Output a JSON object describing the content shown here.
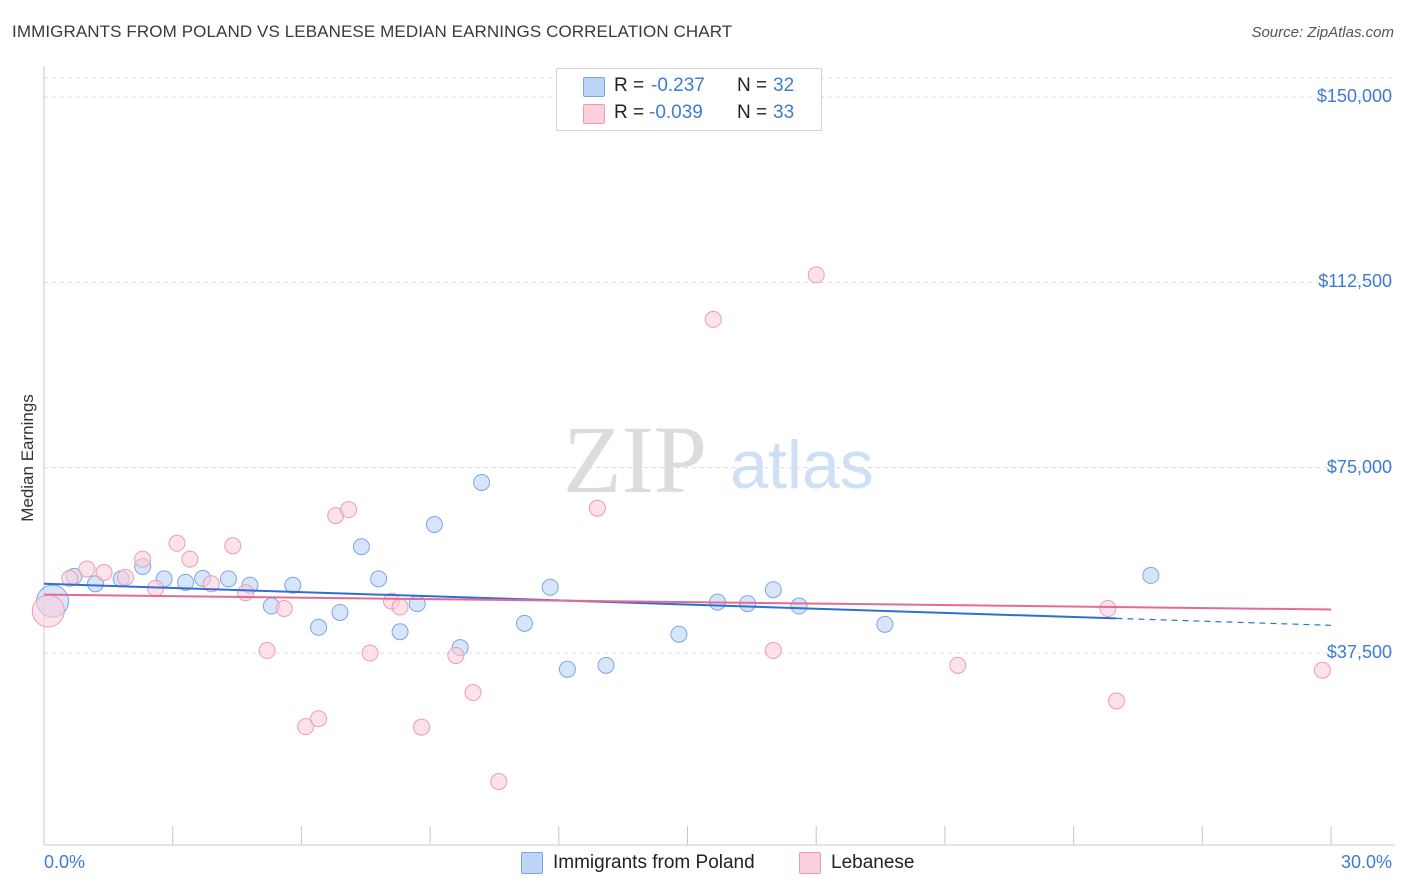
{
  "header": {
    "title": "IMMIGRANTS FROM POLAND VS LEBANESE MEDIAN EARNINGS CORRELATION CHART",
    "source": "Source: ZipAtlas.com"
  },
  "watermark": {
    "zip": "ZIP",
    "atlas": "atlas"
  },
  "stats": {
    "poland": {
      "r_label": "R =",
      "r_value": "-0.237",
      "n_label": "N =",
      "n_value": "32"
    },
    "lebanese": {
      "r_label": "R =",
      "r_value": "-0.039",
      "n_label": "N =",
      "n_value": "33"
    }
  },
  "legend": {
    "poland": "Immigrants from Poland",
    "lebanese": "Lebanese"
  },
  "colors": {
    "poland_fill": "#bcd4f5",
    "poland_stroke": "#7aa6e6",
    "poland_line": "#2f6fd4",
    "lebanese_fill": "#fbcfdc",
    "lebanese_stroke": "#ef9ab5",
    "lebanese_line": "#e46b95",
    "tick_text": "#3d7bd4"
  },
  "chart_data": {
    "type": "scatter",
    "title": "IMMIGRANTS FROM POLAND VS LEBANESE MEDIAN EARNINGS CORRELATION CHART",
    "xlabel": "",
    "ylabel": "Median Earnings",
    "xlim": [
      0,
      30
    ],
    "ylim": [
      0,
      155000
    ],
    "y_ticks": [
      {
        "value": 150000,
        "label": "$150,000"
      },
      {
        "value": 112500,
        "label": "$112,500"
      },
      {
        "value": 75000,
        "label": "$75,000"
      },
      {
        "value": 37500,
        "label": "$37,500"
      }
    ],
    "x_tick_labels": [
      {
        "value": 0,
        "label": "0.0%"
      },
      {
        "value": 30,
        "label": "30.0%"
      }
    ],
    "series": [
      {
        "name": "Immigrants from Poland",
        "r": -0.237,
        "n": 32,
        "trend": {
          "x0": 0,
          "y0": 51500,
          "x1": 25,
          "y1": 44500,
          "dash_to_x": 30,
          "dash_to_y": 43100
        },
        "points": [
          [
            0.2,
            48000,
            16
          ],
          [
            0.7,
            53000,
            8
          ],
          [
            1.2,
            51500,
            8
          ],
          [
            1.8,
            52500,
            8
          ],
          [
            2.3,
            55000,
            8
          ],
          [
            2.8,
            52500,
            8
          ],
          [
            3.3,
            51800,
            8
          ],
          [
            3.7,
            52600,
            8
          ],
          [
            4.3,
            52500,
            8
          ],
          [
            4.8,
            51200,
            8
          ],
          [
            5.3,
            47000,
            8
          ],
          [
            5.8,
            51200,
            8
          ],
          [
            6.4,
            42700,
            8
          ],
          [
            6.9,
            45700,
            8
          ],
          [
            7.4,
            59000,
            8
          ],
          [
            7.8,
            52500,
            8
          ],
          [
            8.3,
            41800,
            8
          ],
          [
            8.7,
            47500,
            8
          ],
          [
            9.1,
            63500,
            8
          ],
          [
            9.7,
            38600,
            8
          ],
          [
            10.2,
            72000,
            8
          ],
          [
            11.2,
            43500,
            8
          ],
          [
            11.8,
            50800,
            8
          ],
          [
            12.2,
            34200,
            8
          ],
          [
            13.1,
            35000,
            8
          ],
          [
            14.8,
            41300,
            8
          ],
          [
            15.7,
            47800,
            8
          ],
          [
            16.4,
            47500,
            8
          ],
          [
            17.0,
            50300,
            8
          ],
          [
            17.6,
            47000,
            8
          ],
          [
            19.6,
            43300,
            8
          ],
          [
            25.8,
            53200,
            8
          ]
        ]
      },
      {
        "name": "Lebanese",
        "r": -0.039,
        "n": 33,
        "trend": {
          "x0": 0,
          "y0": 49300,
          "x1": 30,
          "y1": 46300
        },
        "points": [
          [
            0.1,
            46000,
            16
          ],
          [
            0.6,
            52600,
            8
          ],
          [
            1.0,
            54500,
            8
          ],
          [
            1.4,
            53800,
            8
          ],
          [
            1.9,
            52800,
            8
          ],
          [
            2.3,
            56500,
            8
          ],
          [
            2.6,
            50600,
            8
          ],
          [
            3.1,
            59700,
            8
          ],
          [
            3.4,
            56500,
            8
          ],
          [
            3.9,
            51500,
            8
          ],
          [
            4.4,
            59200,
            8
          ],
          [
            4.7,
            49700,
            8
          ],
          [
            5.2,
            38000,
            8
          ],
          [
            5.6,
            46500,
            8
          ],
          [
            6.1,
            22600,
            8
          ],
          [
            6.4,
            24200,
            8
          ],
          [
            6.8,
            65300,
            8
          ],
          [
            7.1,
            66500,
            8
          ],
          [
            7.6,
            37500,
            8
          ],
          [
            8.1,
            48000,
            8
          ],
          [
            8.3,
            46800,
            8
          ],
          [
            8.8,
            22500,
            8
          ],
          [
            9.6,
            37000,
            8
          ],
          [
            10.0,
            29500,
            8
          ],
          [
            10.6,
            11500,
            8
          ],
          [
            12.9,
            66800,
            8
          ],
          [
            15.6,
            105000,
            8
          ],
          [
            17.0,
            38000,
            8
          ],
          [
            18.0,
            114000,
            8
          ],
          [
            21.3,
            35000,
            8
          ],
          [
            24.8,
            46500,
            8
          ],
          [
            25.0,
            27800,
            8
          ],
          [
            29.8,
            34000,
            8
          ]
        ]
      }
    ]
  }
}
